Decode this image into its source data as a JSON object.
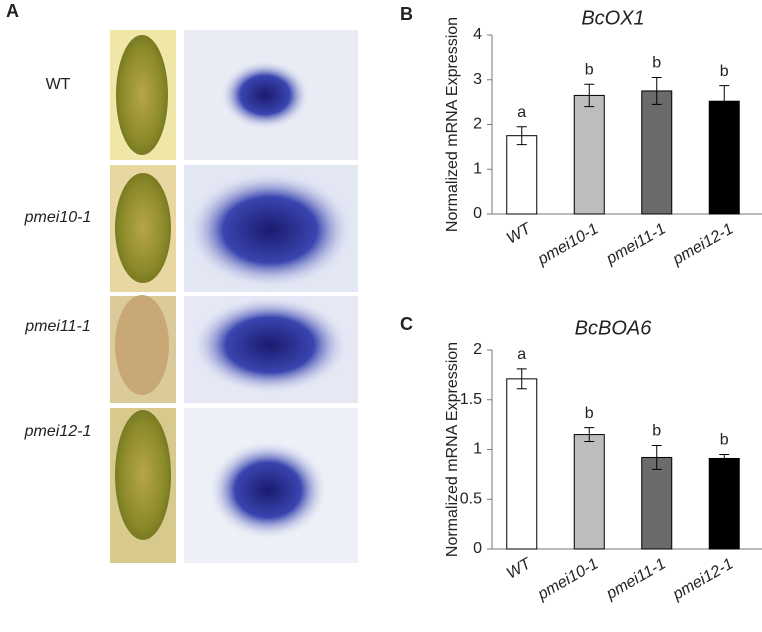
{
  "panel_a": {
    "label": "A",
    "rows": [
      "WT",
      "pmei10-1",
      "pmei11-1",
      "pmei12-1"
    ]
  },
  "chart_data": [
    {
      "type": "bar",
      "panel_label": "B",
      "title": "BcOX1",
      "y_label": "Normalized mRNA Expression",
      "categories": [
        "WT",
        "pmei10-1",
        "pmei11-1",
        "pmei12-1"
      ],
      "values": [
        1.75,
        2.65,
        2.75,
        2.52
      ],
      "errors": [
        0.2,
        0.25,
        0.3,
        0.35
      ],
      "annotations": [
        "a",
        "b",
        "b",
        "b"
      ],
      "colors": [
        "#ffffff",
        "#bdbdbd",
        "#6b6b6b",
        "#000000"
      ],
      "ylim": [
        0,
        4
      ],
      "yticks": [
        0,
        1,
        2,
        3,
        4
      ]
    },
    {
      "type": "bar",
      "panel_label": "C",
      "title": "BcBOA6",
      "y_label": "Normalized mRNA Expression",
      "categories": [
        "WT",
        "pmei10-1",
        "pmei11-1",
        "pmei12-1"
      ],
      "values": [
        1.71,
        1.15,
        0.92,
        0.91
      ],
      "errors": [
        0.1,
        0.07,
        0.12,
        0.04
      ],
      "annotations": [
        "a",
        "b",
        "b",
        "b"
      ],
      "colors": [
        "#ffffff",
        "#bdbdbd",
        "#6b6b6b",
        "#000000"
      ],
      "ylim": [
        0,
        2
      ],
      "yticks": [
        0,
        0.5,
        1,
        1.5,
        2
      ]
    }
  ]
}
